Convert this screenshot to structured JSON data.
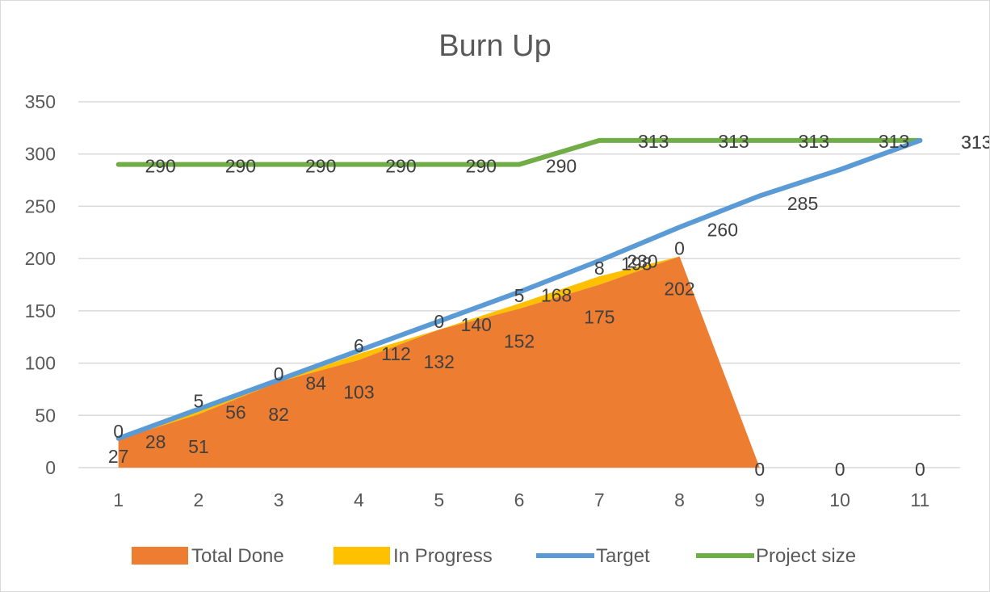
{
  "chart_data": {
    "type": "area",
    "title": "Burn Up",
    "xlabel": "",
    "ylabel": "",
    "categories": [
      "1",
      "2",
      "3",
      "4",
      "5",
      "6",
      "7",
      "8",
      "9",
      "10",
      "11"
    ],
    "ylim": [
      0,
      350
    ],
    "y_ticks": [
      "0",
      "50",
      "100",
      "150",
      "200",
      "250",
      "300",
      "350"
    ],
    "grid": true,
    "legend_position": "bottom",
    "series": [
      {
        "name": "Total Done",
        "kind": "stacked-area",
        "color": "#ed7d31",
        "values": [
          27,
          51,
          82,
          103,
          132,
          152,
          175,
          202,
          0,
          0,
          0
        ],
        "labels": [
          "27",
          "51",
          "82",
          "103",
          "132",
          "152",
          "175",
          "202",
          "0",
          "0",
          "0"
        ]
      },
      {
        "name": "In Progress",
        "kind": "stacked-area",
        "color": "#ffc000",
        "values": [
          0,
          5,
          0,
          6,
          0,
          5,
          8,
          0,
          0,
          0,
          0
        ],
        "labels": [
          "0",
          "5",
          "0",
          "6",
          "0",
          "5",
          "8",
          "0",
          "",
          "",
          ""
        ]
      },
      {
        "name": "Target",
        "kind": "line",
        "color": "#5b9bd5",
        "values": [
          28,
          56,
          84,
          112,
          140,
          168,
          198,
          230,
          260,
          285,
          313
        ],
        "labels": [
          "28",
          "56",
          "84",
          "112",
          "140",
          "168",
          "198",
          "230",
          "260",
          "285",
          "313"
        ]
      },
      {
        "name": "Project size",
        "kind": "line",
        "color": "#70ad47",
        "values": [
          290,
          290,
          290,
          290,
          290,
          290,
          313,
          313,
          313,
          313,
          313
        ],
        "labels": [
          "290",
          "290",
          "290",
          "290",
          "290",
          "290",
          "313",
          "313",
          "313",
          "313",
          "313"
        ]
      }
    ]
  }
}
